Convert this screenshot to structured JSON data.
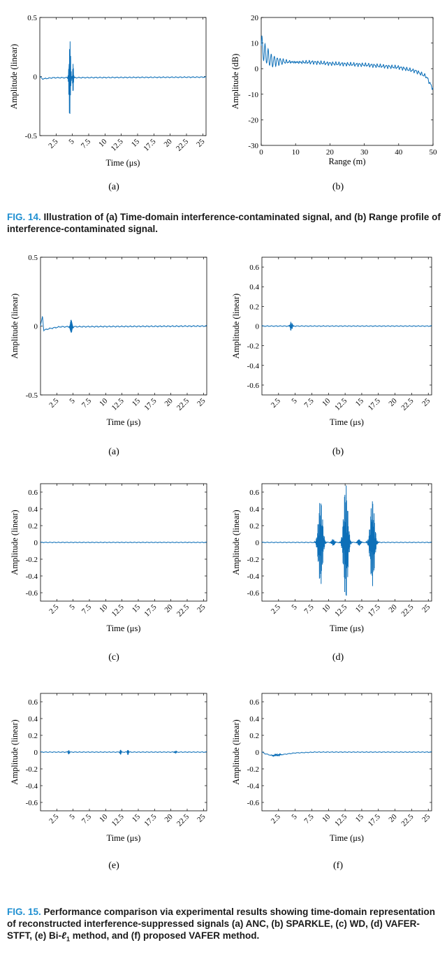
{
  "figures": [
    {
      "caption_label": "FIG. 14.",
      "caption_text": "Illustration of (a) Time-domain interference-contaminated signal, and (b) Range profile of interference-contaminated signal."
    },
    {
      "caption_label": "FIG. 15.",
      "caption_text_pre": "Performance comparison via experimental results showing time-domain representation of reconstructed interference-suppressed signals (a) ANC, (b) SPARKLE, (c) WD, (d) VAFER-STFT, (e) Bi-",
      "caption_text_post": " method, and (f) proposed VAFER method.",
      "caption_l1": "ℓ",
      "caption_l1_sub": "1"
    }
  ],
  "colors": {
    "line": "#0d6fb8",
    "accent": "#1f8fd1"
  },
  "chart_data": [
    {
      "id": "fig14a",
      "type": "line",
      "sublabel": "(a)",
      "xlabel": "Time (μs)",
      "ylabel": "Amplitude (linear)",
      "xlim": [
        0,
        25.5
      ],
      "ylim": [
        -0.5,
        0.5
      ],
      "xticks": [
        2.5,
        5,
        7.5,
        10,
        12.5,
        15,
        17.5,
        20,
        22.5,
        25
      ],
      "xticklabels": [
        "2.5",
        "5",
        "7.5",
        "10",
        "12.5",
        "15",
        "17.5",
        "20",
        "22.5",
        "25"
      ],
      "yticks": [
        -0.5,
        0,
        0.5
      ],
      "yticklabels": [
        "-0.5",
        "0",
        "0.5"
      ],
      "rotated_xticks": true,
      "signal": {
        "baseline": [
          [
            0,
            0.0
          ],
          [
            0.4,
            -0.02
          ],
          [
            2,
            -0.01
          ],
          [
            25.5,
            -0.005
          ]
        ],
        "bursts": [
          {
            "center": 4.6,
            "width": 0.35,
            "amp": 0.36,
            "cycles": 8
          },
          {
            "center": 5.1,
            "width": 0.25,
            "amp": 0.12,
            "cycles": 4
          }
        ],
        "peak_range": [
          -0.27,
          0.36
        ]
      }
    },
    {
      "id": "fig14b",
      "type": "line",
      "sublabel": "(b)",
      "xlabel": "Range (m)",
      "ylabel": "Amplitude (dB)",
      "xlim": [
        0,
        50
      ],
      "ylim": [
        -30,
        20
      ],
      "xticks": [
        0,
        10,
        20,
        30,
        40,
        50
      ],
      "xticklabels": [
        "0",
        "10",
        "20",
        "30",
        "40",
        "50"
      ],
      "yticks": [
        -30,
        -20,
        -10,
        0,
        10,
        20
      ],
      "yticklabels": [
        "-30",
        "-20",
        "-10",
        "0",
        "10",
        "20"
      ],
      "rotated_xticks": false,
      "signal": {
        "profile": [
          [
            0,
            9
          ],
          [
            1,
            6
          ],
          [
            3,
            3
          ],
          [
            6,
            2.8
          ],
          [
            10,
            2.5
          ],
          [
            15,
            2.5
          ],
          [
            20,
            2
          ],
          [
            30,
            1.5
          ],
          [
            40,
            0.5
          ],
          [
            45,
            -1
          ],
          [
            48,
            -3
          ],
          [
            50,
            -8
          ]
        ],
        "ripple_start_amp": 4,
        "ripple_end_x": 15
      }
    },
    {
      "id": "fig15a",
      "type": "line",
      "sublabel": "(a)",
      "xlabel": "Time (μs)",
      "ylabel": "Amplitude (linear)",
      "xlim": [
        0,
        25.5
      ],
      "ylim": [
        -0.5,
        0.5
      ],
      "xticks": [
        2.5,
        5,
        7.5,
        10,
        12.5,
        15,
        17.5,
        20,
        22.5,
        25
      ],
      "xticklabels": [
        "2.5",
        "5",
        "7.5",
        "10",
        "12.5",
        "15",
        "17.5",
        "20",
        "22.5",
        "25"
      ],
      "yticks": [
        -0.5,
        0,
        0.5
      ],
      "yticklabels": [
        "-0.5",
        "0",
        "0.5"
      ],
      "rotated_xticks": true,
      "signal": {
        "baseline": [
          [
            0,
            0.0
          ],
          [
            0.3,
            0.07
          ],
          [
            0.5,
            -0.03
          ],
          [
            1.2,
            -0.02
          ],
          [
            3,
            -0.005
          ],
          [
            25.5,
            0.0
          ]
        ],
        "bursts": [
          {
            "center": 4.7,
            "width": 0.4,
            "amp": 0.05,
            "cycles": 7
          }
        ]
      }
    },
    {
      "id": "fig15b",
      "type": "line",
      "sublabel": "(b)",
      "xlabel": "Time (μs)",
      "ylabel": "Amplitude (linear)",
      "xlim": [
        0,
        25.5
      ],
      "ylim": [
        -0.7,
        0.7
      ],
      "xticks": [
        2.5,
        5,
        7.5,
        10,
        12.5,
        15,
        17.5,
        20,
        22.5,
        25
      ],
      "xticklabels": [
        "2.5",
        "5",
        "7.5",
        "10",
        "12.5",
        "15",
        "17.5",
        "20",
        "22.5",
        "25"
      ],
      "yticks": [
        -0.6,
        -0.4,
        -0.2,
        0,
        0.2,
        0.4,
        0.6
      ],
      "yticklabels": [
        "-0.6",
        "-0.4",
        "-0.2",
        "0",
        "0.2",
        "0.4",
        "0.6"
      ],
      "rotated_xticks": true,
      "signal": {
        "baseline": [
          [
            0,
            0.0
          ],
          [
            25.5,
            0.0
          ]
        ],
        "bursts": [
          {
            "center": 4.4,
            "width": 0.45,
            "amp": 0.05,
            "cycles": 7
          }
        ]
      }
    },
    {
      "id": "fig15c",
      "type": "line",
      "sublabel": "(c)",
      "xlabel": "Time (μs)",
      "ylabel": "Amplitude (linear)",
      "xlim": [
        0,
        25.5
      ],
      "ylim": [
        -0.7,
        0.7
      ],
      "xticks": [
        2.5,
        5,
        7.5,
        10,
        12.5,
        15,
        17.5,
        20,
        22.5,
        25
      ],
      "xticklabels": [
        "2.5",
        "5",
        "7.5",
        "10",
        "12.5",
        "15",
        "17.5",
        "20",
        "22.5",
        "25"
      ],
      "yticks": [
        -0.6,
        -0.4,
        -0.2,
        0,
        0.2,
        0.4,
        0.6
      ],
      "yticklabels": [
        "-0.6",
        "-0.4",
        "-0.2",
        "0",
        "0.2",
        "0.4",
        "0.6"
      ],
      "rotated_xticks": true,
      "signal": {
        "baseline": [
          [
            0,
            0.0
          ],
          [
            25.5,
            0.0
          ]
        ],
        "bursts": []
      }
    },
    {
      "id": "fig15d",
      "type": "line",
      "sublabel": "(d)",
      "xlabel": "Time (μs)",
      "ylabel": "Amplitude (linear)",
      "xlim": [
        0,
        25.5
      ],
      "ylim": [
        -0.7,
        0.7
      ],
      "xticks": [
        2.5,
        5,
        7.5,
        10,
        12.5,
        15,
        17.5,
        20,
        22.5,
        25
      ],
      "xticklabels": [
        "2.5",
        "5",
        "7.5",
        "10",
        "12.5",
        "15",
        "17.5",
        "20",
        "22.5",
        "25"
      ],
      "yticks": [
        -0.6,
        -0.4,
        -0.2,
        0,
        0.2,
        0.4,
        0.6
      ],
      "yticklabels": [
        "-0.6",
        "-0.4",
        "-0.2",
        "0",
        "0.2",
        "0.4",
        "0.6"
      ],
      "rotated_xticks": true,
      "signal": {
        "baseline": [
          [
            0,
            0.0
          ],
          [
            25.5,
            0.0
          ]
        ],
        "bursts": [
          {
            "center": 8.8,
            "width": 0.9,
            "amp": 0.52,
            "cycles": 14
          },
          {
            "center": 12.6,
            "width": 0.9,
            "amp": 0.7,
            "cycles": 14
          },
          {
            "center": 16.6,
            "width": 0.9,
            "amp": 0.52,
            "cycles": 14
          },
          {
            "center": 10.7,
            "width": 0.6,
            "amp": 0.04,
            "cycles": 6
          },
          {
            "center": 14.6,
            "width": 0.6,
            "amp": 0.04,
            "cycles": 6
          }
        ]
      }
    },
    {
      "id": "fig15e",
      "type": "line",
      "sublabel": "(e)",
      "xlabel": "Time (μs)",
      "ylabel": "Amplitude (linear)",
      "xlim": [
        0,
        25.5
      ],
      "ylim": [
        -0.7,
        0.7
      ],
      "xticks": [
        2.5,
        5,
        7.5,
        10,
        12.5,
        15,
        17.5,
        20,
        22.5,
        25
      ],
      "xticklabels": [
        "2.5",
        "5",
        "7.5",
        "10",
        "12.5",
        "15",
        "17.5",
        "20",
        "22.5",
        "25"
      ],
      "yticks": [
        -0.6,
        -0.4,
        -0.2,
        0,
        0.2,
        0.4,
        0.6
      ],
      "yticklabels": [
        "-0.6",
        "-0.4",
        "-0.2",
        "0",
        "0.2",
        "0.4",
        "0.6"
      ],
      "rotated_xticks": true,
      "signal": {
        "baseline": [
          [
            0,
            0.0
          ],
          [
            25.5,
            0.0
          ]
        ],
        "bursts": [
          {
            "center": 4.3,
            "width": 0.3,
            "amp": 0.03,
            "cycles": 5
          },
          {
            "center": 12.3,
            "width": 0.3,
            "amp": 0.03,
            "cycles": 5
          },
          {
            "center": 13.4,
            "width": 0.3,
            "amp": 0.03,
            "cycles": 5
          },
          {
            "center": 20.7,
            "width": 0.3,
            "amp": 0.03,
            "cycles": 5
          }
        ]
      }
    },
    {
      "id": "fig15f",
      "type": "line",
      "sublabel": "(f)",
      "xlabel": "Time (μs)",
      "ylabel": "Amplitude (linear)",
      "xlim": [
        0,
        25.5
      ],
      "ylim": [
        -0.7,
        0.7
      ],
      "xticks": [
        2.5,
        5,
        7.5,
        10,
        12.5,
        15,
        17.5,
        20,
        22.5,
        25
      ],
      "xticklabels": [
        "2.5",
        "5",
        "7.5",
        "10",
        "12.5",
        "15",
        "17.5",
        "20",
        "22.5",
        "25"
      ],
      "yticks": [
        -0.6,
        -0.4,
        -0.2,
        0,
        0.2,
        0.4,
        0.6
      ],
      "yticklabels": [
        "-0.6",
        "-0.4",
        "-0.2",
        "0",
        "0.2",
        "0.4",
        "0.6"
      ],
      "rotated_xticks": true,
      "signal": {
        "baseline": [
          [
            0,
            0.0
          ],
          [
            0.5,
            -0.02
          ],
          [
            1.5,
            -0.04
          ],
          [
            3,
            -0.03
          ],
          [
            5,
            -0.01
          ],
          [
            8,
            0.0
          ],
          [
            25.5,
            0.0
          ]
        ],
        "bursts": [
          {
            "center": 2.2,
            "width": 1.2,
            "amp": 0.012,
            "cycles": 14
          }
        ]
      }
    }
  ]
}
